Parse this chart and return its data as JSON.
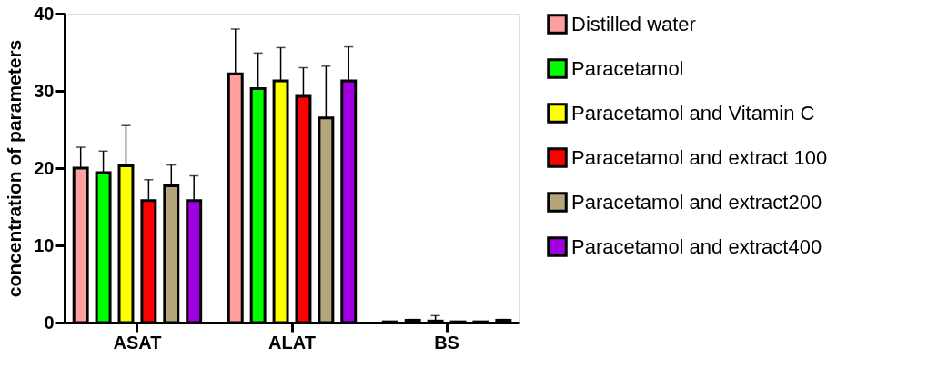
{
  "chart_data": {
    "type": "bar",
    "ylabel": "concentration of parameters",
    "categories": [
      "ASAT",
      "ALAT",
      "BS"
    ],
    "series": [
      {
        "name": "Distilled water",
        "color": "#ff9f9f",
        "values": [
          20.0,
          32.2,
          0.1
        ],
        "errors": [
          [
            20.0,
            22.7
          ],
          [
            32.2,
            38.0
          ],
          null
        ]
      },
      {
        "name": "Paracetamol",
        "color": "#00ff00",
        "values": [
          19.4,
          30.3,
          0.3
        ],
        "errors": [
          [
            19.4,
            22.2
          ],
          [
            30.3,
            34.9
          ],
          [
            0.3,
            0.4
          ]
        ]
      },
      {
        "name": "Paracetamol and Vitamin C",
        "color": "#ffff00",
        "values": [
          20.3,
          31.3,
          0.2
        ],
        "errors": [
          [
            20.3,
            25.5
          ],
          [
            31.3,
            35.6
          ],
          [
            0.2,
            0.9
          ]
        ]
      },
      {
        "name": "Paracetamol and extract 100",
        "color": "#ff0000",
        "values": [
          15.8,
          29.3,
          0.1
        ],
        "errors": [
          [
            15.8,
            18.5
          ],
          [
            29.3,
            33.0
          ],
          null
        ]
      },
      {
        "name": "Paracetamol and extract200",
        "color": "#b5a57a",
        "values": [
          17.7,
          26.5,
          0.1
        ],
        "errors": [
          [
            17.7,
            20.4
          ],
          [
            26.5,
            33.2
          ],
          null
        ]
      },
      {
        "name": "Paracetamol and extract400",
        "color": "#a000e0",
        "values": [
          15.8,
          31.3,
          0.3
        ],
        "errors": [
          [
            15.8,
            19.0
          ],
          [
            31.3,
            35.7
          ],
          [
            0.3,
            0.4
          ]
        ]
      }
    ],
    "ylim": [
      0,
      40
    ],
    "yticks": [
      0,
      10,
      20,
      30,
      40
    ],
    "grid": false,
    "legend": "right"
  }
}
